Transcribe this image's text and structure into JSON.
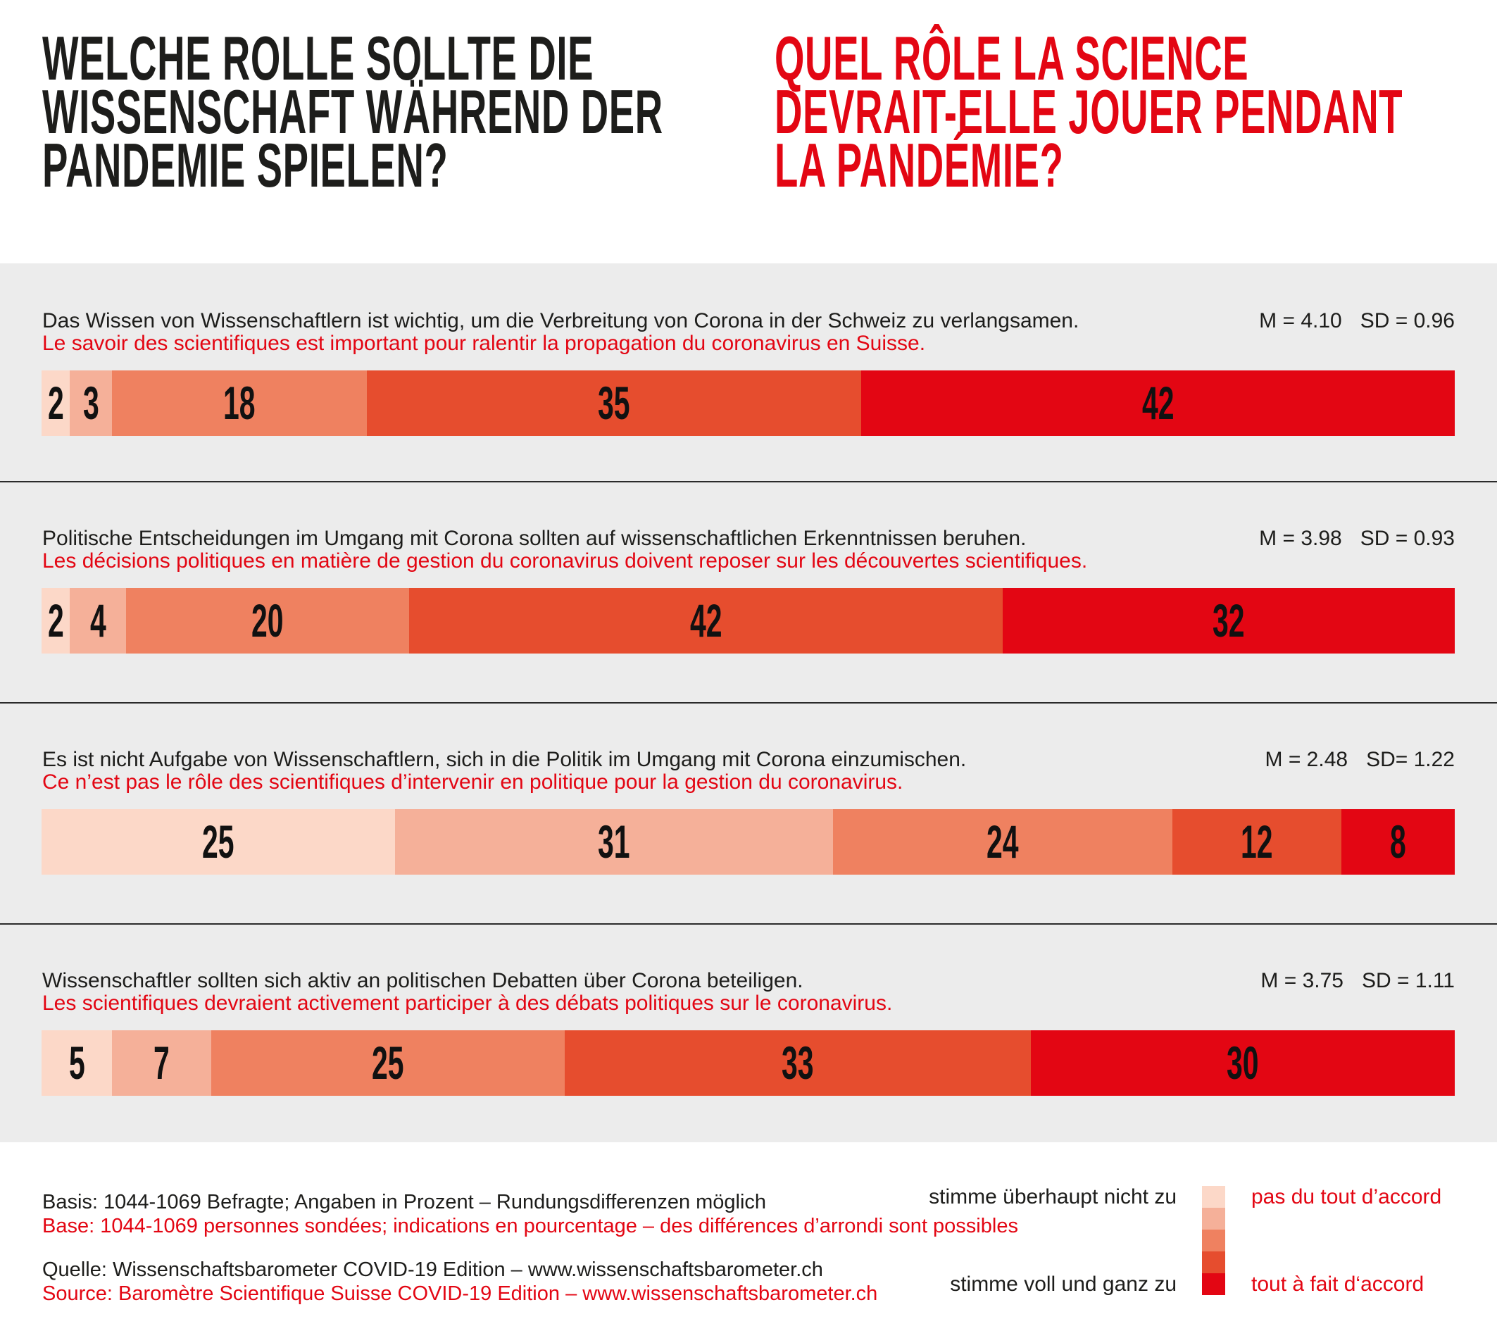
{
  "header": {
    "title_de": {
      "lines": [
        "WELCHE ROLLE SOLLTE DIE",
        "WISSENSCHAFT WÄHREND DER",
        "PANDEMIE SPIELEN?"
      ]
    },
    "title_fr": {
      "lines": [
        "QUEL RÔLE LA SCIENCE",
        "DEVRAIT-ELLE JOUER PENDANT",
        "LA PANDÉMIE?"
      ]
    }
  },
  "colors": {
    "accent_red": "#e30613",
    "band_background": "#ececec",
    "text_black": "#1d1d1b"
  },
  "chart_data": {
    "type": "bar",
    "orientation": "horizontal",
    "stacked": true,
    "unit": "percent",
    "scale_colors": [
      "#fcd8c8",
      "#f5b099",
      "#ef8160",
      "#e64d2e",
      "#e30613"
    ],
    "scale_min_label_de": "stimme überhaupt nicht zu",
    "scale_min_label_fr": "pas du tout d’accord",
    "scale_max_label_de": "stimme voll und ganz zu",
    "scale_max_label_fr": "tout à fait d‘accord",
    "questions": [
      {
        "text_de": "Das Wissen von Wissenschaftlern ist wichtig, um die Verbreitung von Corona in der Schweiz zu verlangsamen.",
        "text_fr": "Le savoir des scientifiques est important pour ralentir la propagation du coronavirus en Suisse.",
        "mean": "M = 4.10",
        "sd": "SD = 0.96",
        "values": [
          2,
          3,
          18,
          35,
          42
        ]
      },
      {
        "text_de": "Politische Entscheidungen im Umgang mit Corona sollten auf wissenschaftlichen Erkenntnissen beruhen.",
        "text_fr": "Les décisions politiques en matière de gestion du coronavirus doivent reposer sur les découvertes scientifiques.",
        "mean": "M = 3.98",
        "sd": "SD = 0.93",
        "values": [
          2,
          4,
          20,
          42,
          32
        ]
      },
      {
        "text_de": "Es ist nicht Aufgabe von Wissenschaftlern, sich in die Politik im Umgang mit Corona einzumischen.",
        "text_fr": "Ce n’est pas le rôle des scientifiques d’intervenir en politique pour la gestion du coronavirus.",
        "mean": "M = 2.48",
        "sd": "SD= 1.22",
        "values": [
          25,
          31,
          24,
          12,
          8
        ]
      },
      {
        "text_de": "Wissenschaftler sollten sich aktiv an politischen Debatten über Corona beteiligen.",
        "text_fr": "Les scientifiques devraient activement participer à des débats politiques sur le coronavirus.",
        "mean": "M = 3.75",
        "sd": "SD = 1.11",
        "values": [
          5,
          7,
          25,
          33,
          30
        ]
      }
    ]
  },
  "footer": {
    "basis_de": "Basis: 1044-1069 Befragte; Angaben in Prozent – Rundungsdifferenzen möglich",
    "basis_fr": "Base: 1044-1069 personnes sondées; indications en pourcentage – des différences d’arrondi sont possibles",
    "quelle_de": "Quelle: Wissenschaftsbarometer COVID-19 Edition – www.wissenschaftsbarometer.ch",
    "source_fr": "Source: Baromètre Scientifique Suisse COVID-19 Edition – www.wissenschaftsbarometer.ch"
  }
}
